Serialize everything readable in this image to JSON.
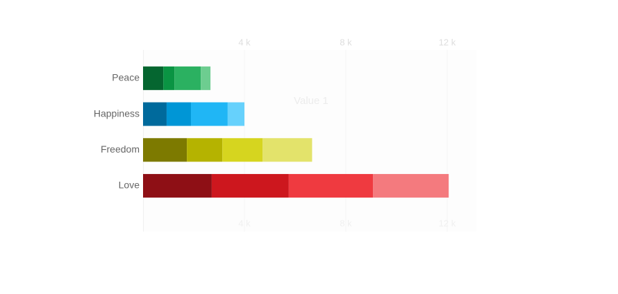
{
  "chart_data": {
    "type": "stacked-bar-horizontal",
    "title": "Value 1",
    "categories": [
      "Peace",
      "Happiness",
      "Freedom",
      "Love"
    ],
    "series": [
      {
        "values": [
          800,
          930,
          1730,
          2710
        ],
        "colors": [
          "#056630",
          "#006a9c",
          "#7d7a00",
          "#8e0f15"
        ]
      },
      {
        "values": [
          440,
          960,
          1400,
          3040
        ],
        "colors": [
          "#0a9443",
          "#0096d6",
          "#b5b300",
          "#cd171e"
        ]
      },
      {
        "values": [
          1040,
          1450,
          1590,
          3320
        ],
        "colors": [
          "#2bb161",
          "#20b6f5",
          "#d6d51f",
          "#ef3a40"
        ]
      },
      {
        "values": [
          380,
          660,
          1950,
          2990
        ],
        "colors": [
          "#6dcd90",
          "#66d1fc",
          "#e3e36b",
          "#f47a7e"
        ]
      }
    ],
    "xlim": [
      0,
      13000
    ],
    "xticks": [
      {
        "value": 4000,
        "label": "4 k"
      },
      {
        "value": 8000,
        "label": "8 k"
      },
      {
        "value": 12000,
        "label": "12 k"
      }
    ]
  }
}
